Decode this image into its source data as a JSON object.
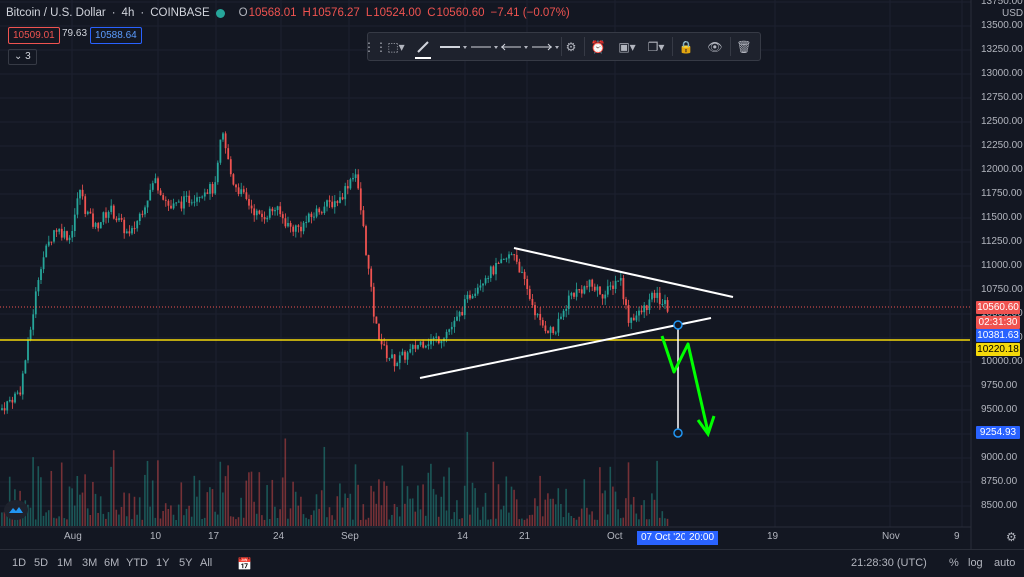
{
  "header": {
    "symbol": "Bitcoin / U.S. Dollar",
    "interval": "4h",
    "exchange": "COINBASE",
    "open_label": "O",
    "open": "10568.01",
    "high_label": "H",
    "high": "10576.27",
    "low_label": "L",
    "low": "10524.00",
    "close_label": "C",
    "close": "10560.60",
    "change": "−7.41 (−0.07%)",
    "bid": "10509.01",
    "spread": "79.63",
    "ask": "10588.64",
    "indicator_toggle": "3"
  },
  "price_axis": {
    "currency": "USD",
    "labels": [
      "13750.00",
      "13500.00",
      "13250.00",
      "13000.00",
      "12750.00",
      "12500.00",
      "12250.00",
      "12000.00",
      "11750.00",
      "11500.00",
      "11250.00",
      "11000.00",
      "10750.00",
      "10500.00",
      "10250.00",
      "10000.00",
      "9750.00",
      "9500.00",
      "9250.00",
      "9000.00",
      "8750.00",
      "8500.00"
    ],
    "last_price": "10560.60",
    "countdown": "02:31:30",
    "level_1": "10381.63",
    "horizontal_line": "10220.18",
    "target": "9254.93"
  },
  "time_axis": {
    "labels": [
      "Aug",
      "10",
      "17",
      "24",
      "Sep",
      "14",
      "21",
      "Oct",
      "19",
      "Nov",
      "9"
    ],
    "cursor_date": "07 Oct '20",
    "cursor_time": "20:00"
  },
  "bottom_bar": {
    "ranges": [
      "1D",
      "5D",
      "1M",
      "3M",
      "6M",
      "YTD",
      "1Y",
      "5Y",
      "All"
    ],
    "clock": "21:28:30 (UTC)",
    "percent": "%",
    "log": "log",
    "auto": "auto"
  },
  "colors": {
    "background": "#131722",
    "up": "#26a69a",
    "down": "#ef5350",
    "horizontal_line": "#f5d90a",
    "trendline": "#ffffff",
    "arrow": "#00ff00",
    "accent": "#2962ff"
  },
  "toolbar_icons": [
    "drag-handle-icon",
    "template-icon",
    "pencil-icon",
    "line-width-icon",
    "line-style-icon",
    "line-start-icon",
    "line-end-icon",
    "settings-icon",
    "alert-icon",
    "group-icon",
    "clone-icon",
    "lock-icon",
    "eye-icon",
    "trash-icon"
  ]
}
